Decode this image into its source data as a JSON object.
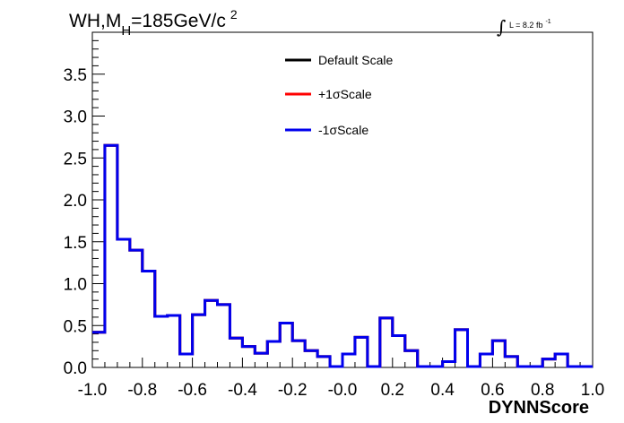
{
  "chart_data": {
    "type": "line",
    "title_main": "WH,M",
    "title_sub": "H",
    "title_rest": "=185GeV/c",
    "title_sup": "2",
    "lumi_label": "L = 8.2 fb",
    "lumi_sup": "-1",
    "xlabel": "DYNNScore",
    "ylabel": "",
    "xlim": [
      -1.0,
      1.0
    ],
    "ylim": [
      0.0,
      4.0
    ],
    "xticks": [
      "-1.0",
      "-0.8",
      "-0.6",
      "-0.4",
      "-0.2",
      "-0.0",
      "0.2",
      "0.4",
      "0.6",
      "0.8",
      "1.0"
    ],
    "yticks": [
      "0.0",
      "0.5",
      "1.0",
      "1.5",
      "2.0",
      "2.5",
      "3.0",
      "3.5"
    ],
    "bin_edges": [
      -1.0,
      -0.95,
      -0.9,
      -0.85,
      -0.8,
      -0.75,
      -0.7,
      -0.65,
      -0.6,
      -0.55,
      -0.5,
      -0.45,
      -0.4,
      -0.35,
      -0.3,
      -0.25,
      -0.2,
      -0.15,
      -0.1,
      -0.05,
      0.0,
      0.05,
      0.1,
      0.15,
      0.2,
      0.25,
      0.3,
      0.35,
      0.4,
      0.45,
      0.5,
      0.55,
      0.6,
      0.65,
      0.7,
      0.75,
      0.8,
      0.85,
      0.9,
      0.95,
      1.0
    ],
    "series": [
      {
        "name": "Default Scale",
        "color": "#000000",
        "values": [
          0.42,
          2.65,
          1.53,
          1.4,
          1.15,
          0.61,
          0.62,
          0.16,
          0.63,
          0.8,
          0.75,
          0.35,
          0.25,
          0.17,
          0.31,
          0.53,
          0.32,
          0.2,
          0.13,
          0.01,
          0.16,
          0.36,
          0.01,
          0.59,
          0.38,
          0.2,
          0.01,
          0.01,
          0.07,
          0.45,
          0.01,
          0.16,
          0.32,
          0.13,
          0.01,
          0.01,
          0.1,
          0.16,
          0.01,
          0.01
        ]
      },
      {
        "name": "+1σScale",
        "color": "#ff0000",
        "values": [
          0.42,
          2.65,
          1.53,
          1.4,
          1.15,
          0.61,
          0.62,
          0.16,
          0.63,
          0.8,
          0.75,
          0.35,
          0.25,
          0.17,
          0.31,
          0.53,
          0.32,
          0.2,
          0.13,
          0.01,
          0.16,
          0.36,
          0.01,
          0.59,
          0.38,
          0.2,
          0.01,
          0.01,
          0.07,
          0.45,
          0.01,
          0.16,
          0.32,
          0.13,
          0.01,
          0.01,
          0.1,
          0.16,
          0.01,
          0.01
        ]
      },
      {
        "name": "-1σScale",
        "color": "#0000ee",
        "values": [
          0.42,
          2.65,
          1.53,
          1.4,
          1.15,
          0.61,
          0.62,
          0.16,
          0.63,
          0.8,
          0.75,
          0.35,
          0.25,
          0.17,
          0.31,
          0.53,
          0.32,
          0.2,
          0.13,
          0.01,
          0.16,
          0.36,
          0.01,
          0.59,
          0.38,
          0.2,
          0.01,
          0.01,
          0.07,
          0.45,
          0.01,
          0.16,
          0.32,
          0.13,
          0.01,
          0.01,
          0.1,
          0.16,
          0.01,
          0.01
        ]
      }
    ],
    "legend_position": "top-center",
    "grid": false
  }
}
